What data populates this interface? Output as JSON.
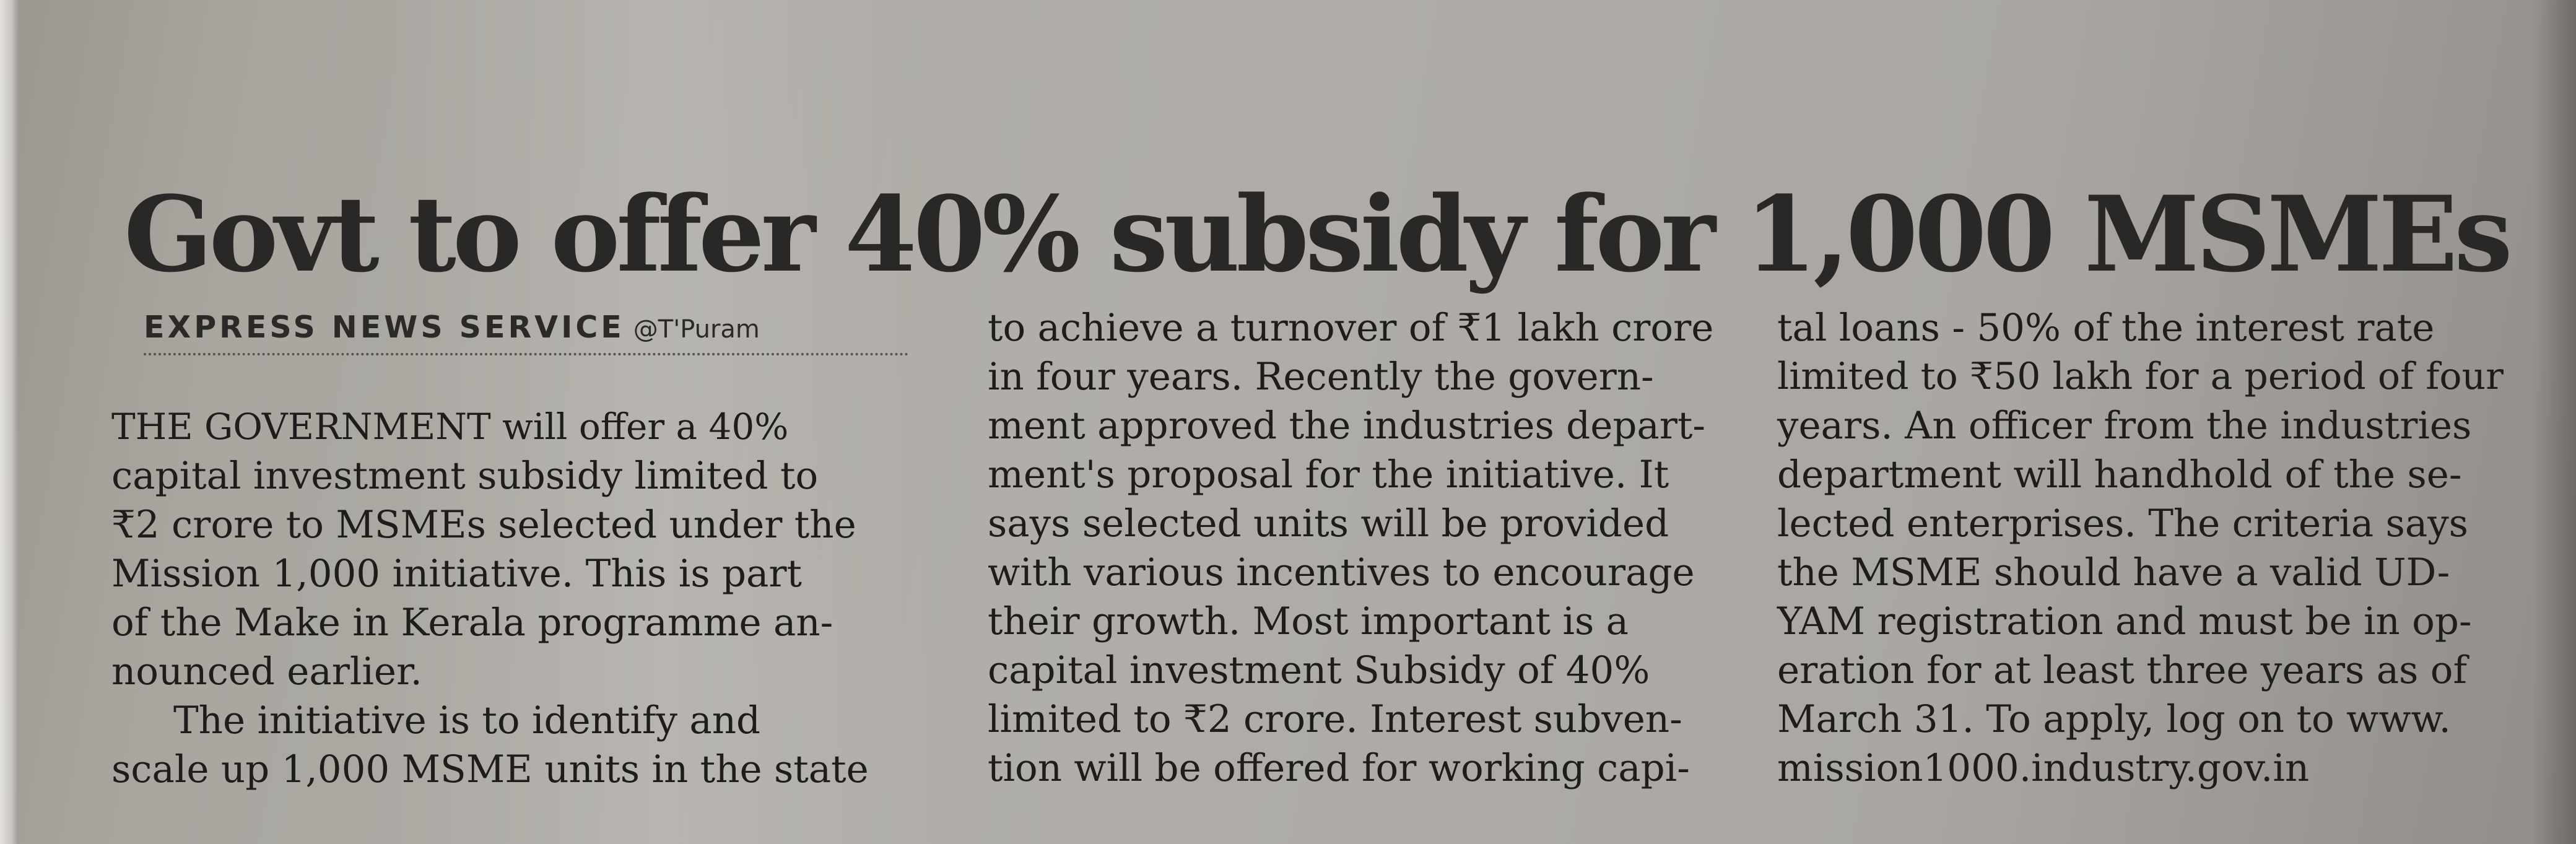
{
  "article": {
    "headline": "Govt to offer 40% subsidy for 1,000 MSMEs",
    "byline": {
      "source": "EXPRESS NEWS SERVICE",
      "location": "@T'Puram"
    },
    "columns": [
      [
        "THE GOVERNMENT will offer a 40%",
        "capital investment subsidy limited to",
        "₹2 crore to MSMEs selected under the",
        "Mission 1,000 initiative. This is part",
        "of the Make in Kerala programme an-",
        "nounced earlier.",
        "The initiative is to identify and",
        "scale up 1,000 MSME units in the state"
      ],
      [
        "to achieve a turnover of ₹1 lakh crore",
        "in four years. Recently the govern-",
        "ment approved the industries depart-",
        "ment's proposal for the initiative. It",
        "says selected units will be provided",
        "with various incentives to encourage",
        "their growth. Most important is a",
        "capital investment Subsidy of 40%",
        "limited to ₹2 crore. Interest subven-",
        "tion will be offered for working capi-"
      ],
      [
        "tal loans - 50% of the interest rate",
        "limited to ₹50 lakh for a period of four",
        "years. An officer from the industries",
        "department will handhold of the se-",
        "lected enterprises. The criteria says",
        "the MSME should have a valid UD-",
        "YAM registration and must be in op-",
        "eration for at least three years as of",
        "March 31. To apply, log on to www.",
        "mission1000.industry.gov.in"
      ]
    ]
  }
}
